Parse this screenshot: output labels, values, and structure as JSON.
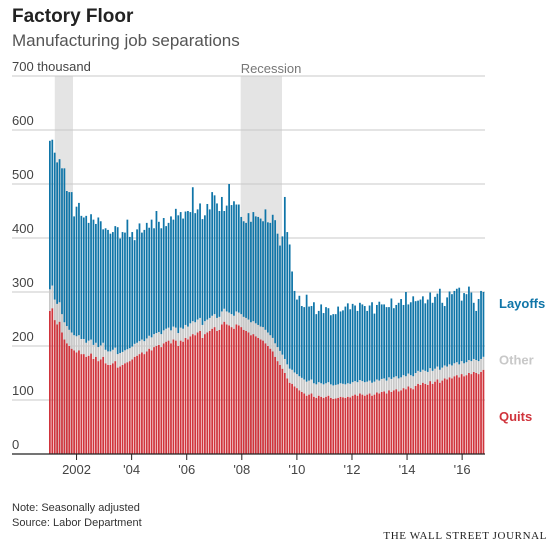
{
  "title": "Factory Floor",
  "subtitle": "Manufacturing job separations",
  "note": "Note: Seasonally adjusted",
  "source": "Source: Labor Department",
  "publisher": "THE WALL STREET JOURNAL",
  "colors": {
    "layoffs": "#0f75a8",
    "other": "#c8c8c8",
    "quits": "#d0343c",
    "recession": "#e4e4e4",
    "grid": "#c9c9c9",
    "axis": "#222222"
  },
  "chart_data": {
    "type": "bar",
    "stacked": true,
    "xlim": [
      2001.0,
      2016.83
    ],
    "ylim": [
      0,
      700
    ],
    "ytick_values": [
      0,
      100,
      200,
      300,
      400,
      500,
      600,
      700
    ],
    "ytick_labels": [
      "0",
      "100",
      "200",
      "300",
      "400",
      "500",
      "600",
      "700 thousand"
    ],
    "xtick_values": [
      2002,
      2004,
      2006,
      2008,
      2010,
      2012,
      2014,
      2016
    ],
    "xtick_labels": [
      "2002",
      "'04",
      "'06",
      "'08",
      "'10",
      "'12",
      "'14",
      "'16"
    ],
    "recessions": [
      {
        "start": 2001.21,
        "end": 2001.87,
        "label": ""
      },
      {
        "start": 2007.96,
        "end": 2009.46,
        "label": "Recession"
      }
    ],
    "grid": true,
    "legend_placement": "right, beside latest bars",
    "series": [
      {
        "name": "Quits",
        "key": "quits",
        "values": [
          265,
          270,
          248,
          240,
          245,
          225,
          212,
          205,
          200,
          195,
          192,
          188,
          192,
          185,
          185,
          180,
          182,
          186,
          176,
          180,
          172,
          175,
          180,
          168,
          165,
          165,
          168,
          172,
          160,
          162,
          165,
          168,
          170,
          172,
          175,
          180,
          182,
          185,
          188,
          185,
          190,
          195,
          192,
          198,
          200,
          202,
          198,
          205,
          208,
          210,
          205,
          212,
          210,
          200,
          210,
          208,
          215,
          212,
          218,
          222,
          220,
          225,
          228,
          215,
          222,
          225,
          228,
          232,
          235,
          228,
          230,
          240,
          245,
          240,
          238,
          235,
          232,
          240,
          238,
          235,
          230,
          228,
          225,
          220,
          222,
          218,
          215,
          212,
          210,
          205,
          200,
          195,
          190,
          180,
          172,
          165,
          158,
          150,
          140,
          132,
          130,
          125,
          122,
          118,
          115,
          112,
          108,
          110,
          112,
          106,
          104,
          108,
          106,
          104,
          106,
          108,
          104,
          102,
          103,
          104,
          106,
          105,
          104,
          106,
          105,
          108,
          110,
          108,
          112,
          110,
          108,
          110,
          112,
          108,
          110,
          114,
          112,
          115,
          116,
          112,
          118,
          115,
          118,
          120,
          116,
          118,
          122,
          120,
          125,
          122,
          120,
          126,
          130,
          128,
          132,
          130,
          128,
          135,
          130,
          134,
          138,
          132,
          136,
          140,
          138,
          142,
          140,
          144,
          146,
          142,
          148,
          144,
          146,
          150,
          148,
          152,
          150,
          148,
          152,
          156
        ]
      },
      {
        "name": "Other",
        "key": "other",
        "values": [
          40,
          42,
          38,
          38,
          36,
          34,
          32,
          32,
          30,
          30,
          28,
          30,
          28,
          28,
          28,
          26,
          28,
          26,
          26,
          26,
          26,
          26,
          26,
          25,
          25,
          25,
          25,
          25,
          25,
          25,
          24,
          24,
          24,
          24,
          24,
          24,
          24,
          24,
          24,
          24,
          24,
          24,
          24,
          24,
          24,
          24,
          24,
          24,
          24,
          24,
          24,
          24,
          24,
          24,
          24,
          24,
          24,
          24,
          24,
          24,
          24,
          24,
          24,
          24,
          24,
          24,
          24,
          24,
          24,
          24,
          24,
          24,
          24,
          24,
          24,
          24,
          24,
          24,
          24,
          24,
          24,
          24,
          24,
          24,
          24,
          24,
          24,
          24,
          25,
          25,
          25,
          25,
          25,
          25,
          26,
          26,
          26,
          26,
          26,
          26,
          26,
          26,
          26,
          26,
          26,
          26,
          26,
          26,
          26,
          25,
          25,
          25,
          25,
          25,
          25,
          25,
          25,
          25,
          25,
          25,
          25,
          25,
          25,
          25,
          25,
          25,
          25,
          25,
          25,
          25,
          25,
          24,
          24,
          24,
          24,
          24,
          24,
          24,
          24,
          24,
          24,
          24,
          24,
          24,
          24,
          24,
          24,
          24,
          24,
          24,
          24,
          24,
          24,
          24,
          24,
          24,
          24,
          24,
          24,
          24,
          24,
          24,
          24,
          24,
          24,
          24,
          24,
          24,
          24,
          24,
          24,
          24,
          24,
          24,
          24,
          24,
          24,
          24,
          24,
          24
        ]
      },
      {
        "name": "Layoffs",
        "key": "layoffs",
        "values": [
          275,
          270,
          272,
          262,
          265,
          270,
          285,
          250,
          255,
          260,
          220,
          240,
          245,
          228,
          225,
          235,
          218,
          232,
          232,
          220,
          240,
          230,
          210,
          225,
          225,
          218,
          218,
          225,
          235,
          212,
          222,
          218,
          240,
          206,
          212,
          192,
          210,
          218,
          198,
          206,
          214,
          200,
          218,
          196,
          226,
          204,
          196,
          208,
          190,
          194,
          211,
          198,
          220,
          218,
          214,
          204,
          210,
          214,
          206,
          248,
          202,
          204,
          212,
          196,
          196,
          214,
          201,
          229,
          220,
          212,
          196,
          212,
          181,
          196,
          238,
          202,
          212,
          198,
          200,
          180,
          177,
          176,
          197,
          186,
          202,
          198,
          200,
          200,
          196,
          223,
          204,
          208,
          228,
          228,
          210,
          195,
          219,
          300,
          245,
          230,
          182,
          151,
          138,
          149,
          133,
          134,
          161,
          137,
          136,
          150,
          130,
          132,
          146,
          132,
          141,
          137,
          128,
          132,
          131,
          144,
          133,
          136,
          144,
          148,
          138,
          145,
          140,
          132,
          143,
          142,
          141,
          131,
          139,
          149,
          126,
          138,
          146,
          138,
          137,
          136,
          130,
          149,
          128,
          132,
          140,
          145,
          130,
          156,
          128,
          135,
          148,
          133,
          130,
          134,
          136,
          125,
          134,
          140,
          126,
          133,
          135,
          150,
          120,
          110,
          128,
          135,
          132,
          134,
          136,
          142,
          112,
          130,
          126,
          136,
          127,
          104,
          91,
          115,
          126,
          120
        ]
      }
    ]
  }
}
